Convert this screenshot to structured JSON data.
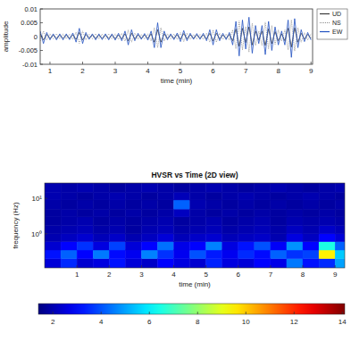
{
  "chart_data": [
    {
      "type": "line",
      "xlabel": "time (min)",
      "ylabel": "amplitude",
      "x": [
        0.7,
        0.8,
        0.9,
        1.0,
        1.1,
        1.2,
        1.3,
        1.4,
        1.5,
        1.6,
        1.7,
        1.8,
        1.9,
        2.0,
        2.1,
        2.2,
        2.3,
        2.4,
        2.5,
        2.6,
        2.7,
        2.8,
        2.9,
        3.0,
        3.1,
        3.2,
        3.3,
        3.4,
        3.5,
        3.6,
        3.7,
        3.8,
        3.9,
        4.0,
        4.1,
        4.2,
        4.3,
        4.4,
        4.5,
        4.6,
        4.7,
        4.8,
        4.9,
        5.0,
        5.1,
        5.2,
        5.3,
        5.4,
        5.5,
        5.6,
        5.7,
        5.8,
        5.9,
        6.0,
        6.1,
        6.2,
        6.3,
        6.4,
        6.5,
        6.6,
        6.7,
        6.8,
        6.9,
        7.0,
        7.1,
        7.2,
        7.3,
        7.4,
        7.5,
        7.6,
        7.7,
        7.8,
        7.9,
        8.0,
        8.1,
        8.2,
        8.3,
        8.4,
        8.5,
        8.6,
        8.7,
        8.8,
        8.9,
        9.0
      ],
      "series": [
        {
          "name": "UD",
          "color": "#3a3a3a",
          "line_style": "solid",
          "values": [
            0.001,
            -0.0012,
            0.0008,
            -0.0006,
            0.0005,
            -0.0006,
            0.0005,
            -0.0006,
            0.0005,
            -0.0006,
            0.0007,
            -0.001,
            0.0015,
            -0.0012,
            0.0008,
            -0.0005,
            0.0005,
            -0.0006,
            0.0005,
            -0.0006,
            0.0005,
            -0.0006,
            0.0005,
            -0.0007,
            0.0006,
            -0.0008,
            0.001,
            -0.0015,
            0.0012,
            -0.0008,
            0.0006,
            -0.0005,
            0.0006,
            -0.0007,
            0.001,
            -0.002,
            0.0025,
            -0.002,
            0.001,
            -0.0006,
            0.0005,
            -0.0006,
            0.0007,
            -0.0009,
            0.0011,
            -0.0008,
            0.0006,
            -0.0005,
            0.0006,
            -0.0005,
            0.0006,
            -0.0008,
            0.0012,
            -0.0015,
            0.0012,
            -0.0008,
            0.0006,
            -0.0006,
            0.0008,
            -0.0015,
            0.0028,
            -0.0035,
            0.003,
            -0.0022,
            0.0035,
            -0.003,
            0.002,
            -0.0012,
            0.002,
            -0.0032,
            0.0028,
            -0.0025,
            0.0018,
            -0.0015,
            0.001,
            -0.0015,
            0.003,
            -0.0038,
            0.0032,
            -0.002,
            0.0012,
            -0.0009,
            0.0008,
            -0.0006
          ]
        },
        {
          "name": "NS",
          "color": "#8a8a8a",
          "line_style": "dotted",
          "values": [
            -0.0016,
            0.002,
            -0.0012,
            0.001,
            -0.0008,
            0.001,
            -0.0008,
            0.001,
            -0.0008,
            0.0009,
            -0.001,
            0.0016,
            -0.0024,
            0.002,
            -0.0012,
            0.0008,
            -0.0008,
            0.001,
            -0.0008,
            0.0009,
            -0.0008,
            0.001,
            -0.0008,
            0.001,
            -0.001,
            0.0012,
            -0.0016,
            0.0024,
            -0.002,
            0.0012,
            -0.001,
            0.0008,
            -0.0009,
            0.001,
            -0.0016,
            0.0032,
            -0.004,
            0.0032,
            -0.0016,
            0.001,
            -0.0008,
            0.0009,
            -0.001,
            0.0014,
            -0.0018,
            0.0012,
            -0.001,
            0.0008,
            -0.0009,
            0.0008,
            -0.001,
            0.0012,
            -0.002,
            0.0024,
            -0.002,
            0.0012,
            -0.001,
            0.0009,
            -0.0012,
            0.0024,
            -0.0044,
            0.0056,
            -0.0048,
            0.0036,
            -0.0056,
            0.0048,
            -0.0032,
            0.002,
            -0.0032,
            0.0052,
            -0.0044,
            0.004,
            -0.0028,
            0.0024,
            -0.0016,
            0.0024,
            -0.0048,
            0.006,
            -0.0052,
            0.0032,
            -0.002,
            0.0014,
            -0.0012,
            0.001
          ]
        },
        {
          "name": "EW",
          "color": "#1f4fc0",
          "line_style": "solid",
          "values": [
            0.002,
            -0.0025,
            0.0015,
            -0.0012,
            0.001,
            -0.0012,
            0.001,
            -0.0012,
            0.001,
            -0.0011,
            0.0013,
            -0.002,
            0.003,
            -0.0025,
            0.0015,
            -0.001,
            0.001,
            -0.0012,
            0.001,
            -0.0011,
            0.001,
            -0.0012,
            0.001,
            -0.0013,
            0.0012,
            -0.0015,
            0.002,
            -0.003,
            0.0025,
            -0.0015,
            0.0012,
            -0.001,
            0.0011,
            -0.0013,
            0.002,
            -0.004,
            0.005,
            -0.004,
            0.002,
            -0.0012,
            0.001,
            -0.0011,
            0.0013,
            -0.0018,
            0.0022,
            -0.0015,
            0.0012,
            -0.001,
            0.0011,
            -0.001,
            0.0012,
            -0.0015,
            0.0025,
            -0.003,
            0.0025,
            -0.0015,
            0.0012,
            -0.0011,
            0.0015,
            -0.003,
            0.0055,
            -0.007,
            0.006,
            -0.0045,
            0.007,
            -0.006,
            0.004,
            -0.0025,
            0.004,
            -0.0065,
            0.0055,
            -0.005,
            0.0035,
            -0.003,
            0.002,
            -0.003,
            0.006,
            -0.0075,
            0.0065,
            -0.004,
            0.0025,
            -0.0018,
            0.0015,
            -0.0012
          ]
        }
      ],
      "xlim": [
        0.7,
        9.05
      ],
      "xticks": [
        1,
        2,
        3,
        4,
        5,
        6,
        7,
        8,
        9
      ],
      "ylim": [
        -0.01,
        0.01
      ],
      "yticks": [
        -0.01,
        -0.005,
        0,
        0.005,
        0.01
      ],
      "legend": "right"
    },
    {
      "type": "heatmap",
      "title": "HVSR vs Time (2D view)",
      "xlabel": "time (min)",
      "ylabel": "frequency (Hz)",
      "x_bins": [
        0,
        0.5,
        1,
        1.5,
        2,
        2.5,
        3,
        3.5,
        4,
        4.5,
        5,
        5.5,
        6,
        6.5,
        7,
        7.5,
        8,
        8.5,
        9,
        9.3
      ],
      "y_bins": [
        0.11,
        0.2,
        0.35,
        0.6,
        1,
        1.7,
        3,
        5,
        9,
        15,
        27
      ],
      "z": [
        [
          2.5,
          3.5,
          2.4,
          2.6,
          3.2,
          2.5,
          2.3,
          3.0,
          2.6,
          2.4,
          3.4,
          2.6,
          2.5,
          3.0,
          2.7,
          4.5,
          3.2,
          3.5,
          5.0
        ],
        [
          3.2,
          4.2,
          3.0,
          4.5,
          3.1,
          2.8,
          4.6,
          3.6,
          2.8,
          4.0,
          3.3,
          2.8,
          3.5,
          3.1,
          4.2,
          3.6,
          3.8,
          9.5,
          5.5
        ],
        [
          2.4,
          3.0,
          3.6,
          2.6,
          3.8,
          2.5,
          3.0,
          4.4,
          2.7,
          3.0,
          4.6,
          2.6,
          3.2,
          4.0,
          2.9,
          4.8,
          3.0,
          6.5,
          4.2
        ],
        [
          2.0,
          2.2,
          2.4,
          2.1,
          2.3,
          2.0,
          2.2,
          2.5,
          2.1,
          2.3,
          2.4,
          2.1,
          2.2,
          2.3,
          2.0,
          2.6,
          2.2,
          3.0,
          2.5
        ],
        [
          1.9,
          2.0,
          2.1,
          1.9,
          2.0,
          1.8,
          2.0,
          2.1,
          1.9,
          2.0,
          2.1,
          1.9,
          2.0,
          2.1,
          1.9,
          2.2,
          2.0,
          2.3,
          2.1
        ],
        [
          1.8,
          1.9,
          2.0,
          1.8,
          1.9,
          1.8,
          1.9,
          2.0,
          1.8,
          1.9,
          2.0,
          1.8,
          1.9,
          2.0,
          1.8,
          2.0,
          1.9,
          2.0,
          1.9
        ],
        [
          1.8,
          1.9,
          1.8,
          1.9,
          1.8,
          1.9,
          1.8,
          1.9,
          2.2,
          1.9,
          1.8,
          1.9,
          1.8,
          1.9,
          1.8,
          1.9,
          1.8,
          1.9,
          1.8
        ],
        [
          1.9,
          1.8,
          1.9,
          1.8,
          1.9,
          1.8,
          1.9,
          1.8,
          4.2,
          2.0,
          1.9,
          1.8,
          1.9,
          1.8,
          1.9,
          1.8,
          1.9,
          1.8,
          1.9
        ],
        [
          2.0,
          1.9,
          1.8,
          1.9,
          2.0,
          1.9,
          1.8,
          1.9,
          2.1,
          1.9,
          1.8,
          1.9,
          2.0,
          1.9,
          1.8,
          1.9,
          2.0,
          1.9,
          1.8
        ],
        [
          2.0,
          1.9,
          2.0,
          1.9,
          1.8,
          1.9,
          2.0,
          1.9,
          1.8,
          1.9,
          2.0,
          1.9,
          1.8,
          1.9,
          2.0,
          1.9,
          1.8,
          1.9,
          2.0
        ]
      ],
      "xlim": [
        0,
        9.3
      ],
      "xticks": [
        1,
        2,
        3,
        4,
        5,
        6,
        7,
        8,
        9
      ],
      "ylim": [
        0.11,
        27
      ],
      "yticks": [
        {
          "value": 1,
          "label": "10⁰"
        },
        {
          "value": 10,
          "label": "10¹"
        }
      ],
      "log": "y",
      "colorbar_range": [
        1.4,
        14.1
      ],
      "colorbar_ticks": [
        2,
        4,
        6,
        8,
        10,
        12,
        14
      ]
    }
  ]
}
